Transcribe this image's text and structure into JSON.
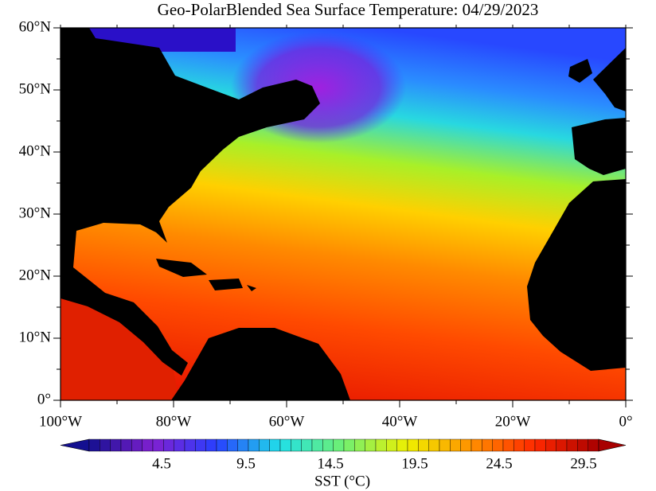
{
  "title": "Geo-PolarBlended Sea Surface Temperature: 04/29/2023",
  "lat_labels": [
    "60°N",
    "50°N",
    "40°N",
    "30°N",
    "20°N",
    "10°N",
    "0°"
  ],
  "lon_labels": [
    "100°W",
    "80°W",
    "60°W",
    "40°W",
    "20°W",
    "0°"
  ],
  "colorbar": {
    "labels": [
      "4.5",
      "9.5",
      "14.5",
      "19.5",
      "24.5",
      "29.5"
    ],
    "title": "SST (°C)"
  }
}
